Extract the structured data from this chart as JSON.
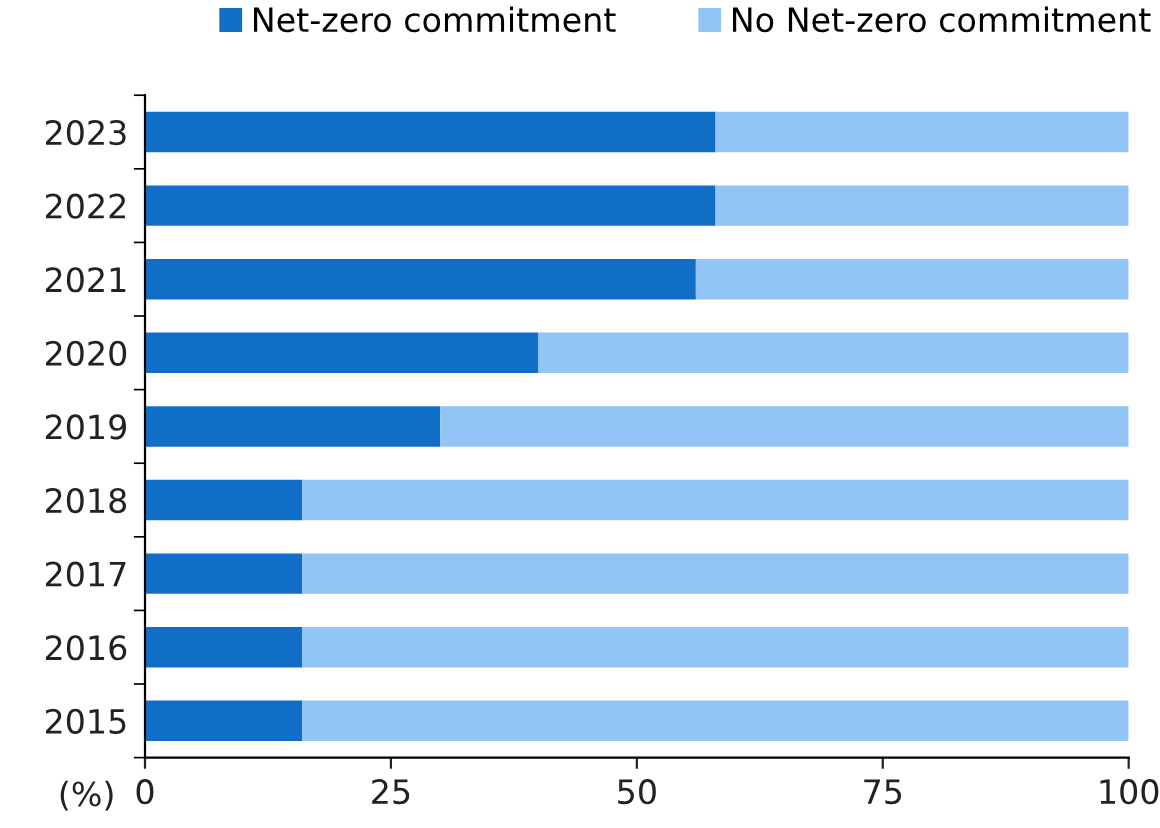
{
  "chart_data": {
    "type": "bar",
    "orientation": "horizontal",
    "stacked": true,
    "xlabel": "(%)",
    "categories": [
      "2023",
      "2022",
      "2021",
      "2020",
      "2019",
      "2018",
      "2017",
      "2016",
      "2015"
    ],
    "series": [
      {
        "name": "Net-zero commitment",
        "color": "#106ec6",
        "values": [
          58,
          58,
          56,
          40,
          30,
          16,
          16,
          16,
          16
        ]
      },
      {
        "name": "No Net-zero commitment",
        "color": "#92c5f5",
        "values": [
          42,
          42,
          44,
          60,
          70,
          84,
          84,
          84,
          84
        ]
      }
    ],
    "xlim": [
      0,
      100
    ],
    "xticks": [
      0,
      25,
      50,
      75,
      100
    ],
    "grid": false,
    "legend": "top"
  }
}
